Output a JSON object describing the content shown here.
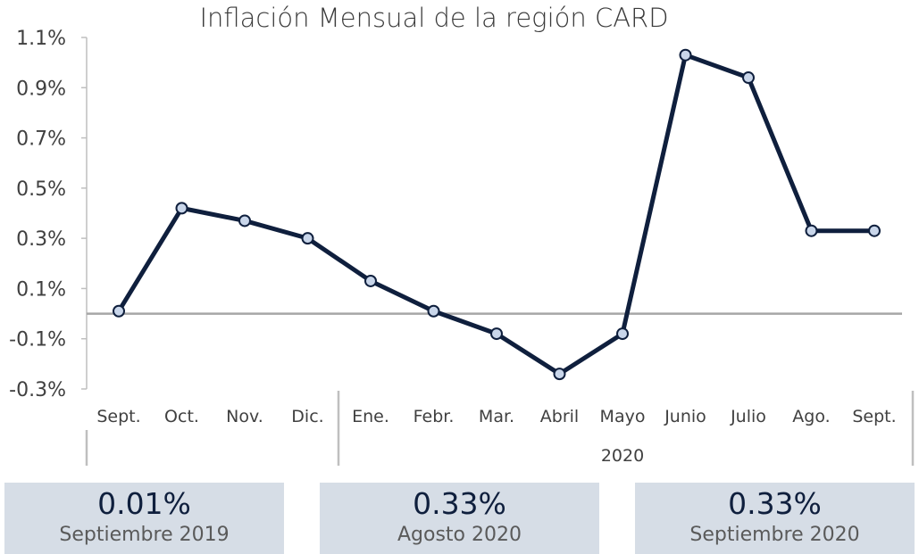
{
  "chart_data": {
    "type": "line",
    "title": "Inflación Mensual de la región CARD",
    "categories": [
      "Sept.",
      "Oct.",
      "Nov.",
      "Dic.",
      "Ene.",
      "Febr.",
      "Mar.",
      "Abril",
      "Mayo",
      "Junio",
      "Julio",
      "Ago.",
      "Sept."
    ],
    "category_groups": [
      {
        "label": "",
        "from": 0,
        "to": 3
      },
      {
        "label": "2020",
        "from": 4,
        "to": 12
      }
    ],
    "series": [
      {
        "values": [
          0.01,
          0.42,
          0.37,
          0.3,
          0.13,
          0.01,
          -0.08,
          -0.24,
          -0.08,
          1.03,
          0.94,
          0.33,
          0.33
        ]
      }
    ],
    "ylim": [
      -0.3,
      1.1
    ],
    "yticks": [
      "1.1%",
      "0.9%",
      "0.7%",
      "0.5%",
      "0.3%",
      "0.1%",
      "-0.1%",
      "-0.3%"
    ],
    "ytick_values": [
      1.1,
      0.9,
      0.7,
      0.5,
      0.3,
      0.1,
      -0.1,
      -0.3
    ],
    "line_color": "#0f1f3d",
    "marker_fill": "#c9d6ea",
    "grid": false
  },
  "summary_cards": [
    {
      "value": "0.01%",
      "label": "Septiembre 2019"
    },
    {
      "value": "0.33%",
      "label": "Agosto 2020"
    },
    {
      "value": "0.33%",
      "label": "Septiembre 2020"
    }
  ]
}
